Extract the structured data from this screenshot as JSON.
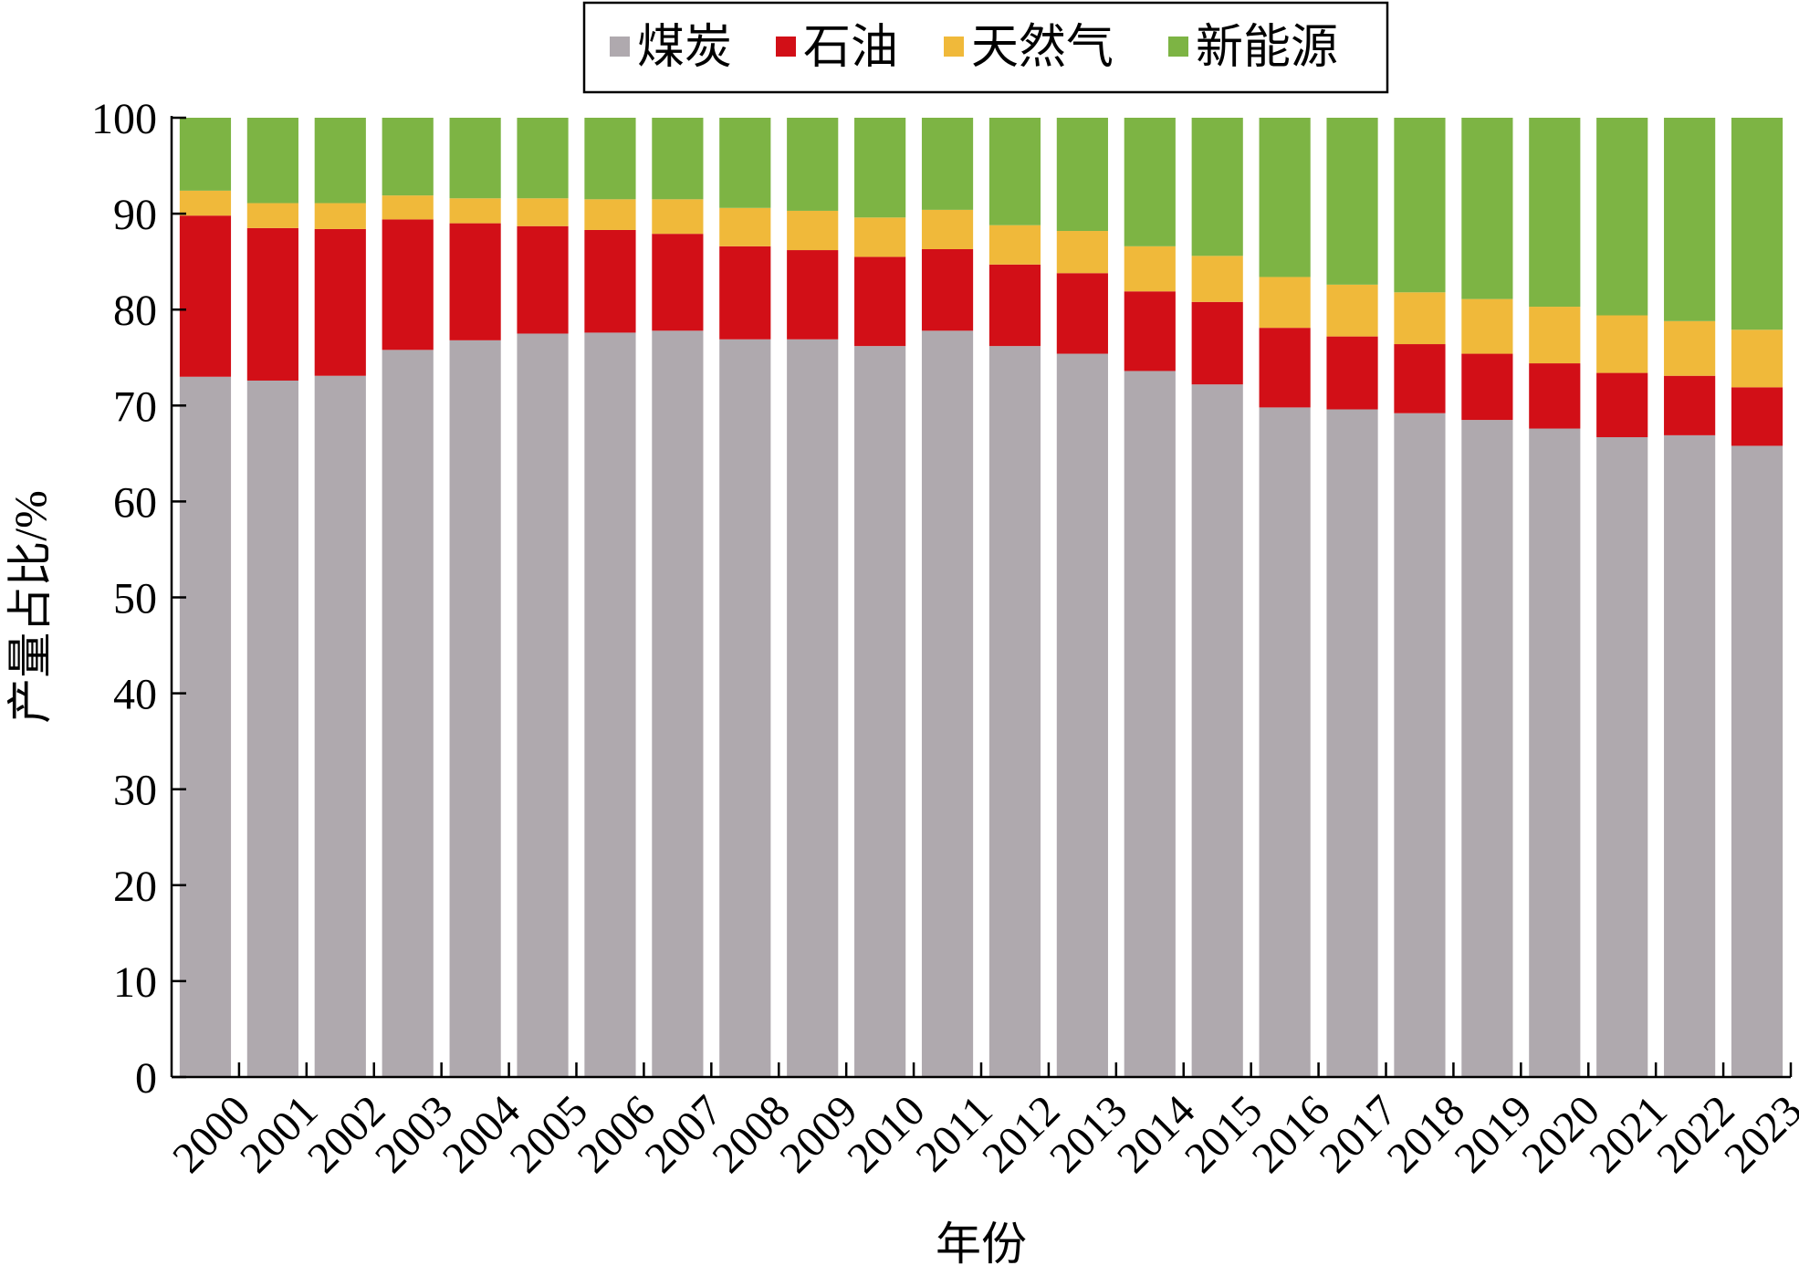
{
  "chart_data": {
    "type": "bar",
    "stacked": true,
    "title": "",
    "xlabel": "年份",
    "ylabel": "产量占比/%",
    "ylim": [
      0,
      100
    ],
    "yticks": [
      0,
      10,
      20,
      30,
      40,
      50,
      60,
      70,
      80,
      90,
      100
    ],
    "grid": false,
    "legend_position": "top-center",
    "categories": [
      "2000",
      "2001",
      "2002",
      "2003",
      "2004",
      "2005",
      "2006",
      "2007",
      "2008",
      "2009",
      "2010",
      "2011",
      "2012",
      "2013",
      "2014",
      "2015",
      "2016",
      "2017",
      "2018",
      "2019",
      "2020",
      "2021",
      "2022",
      "2023"
    ],
    "series": [
      {
        "name": "煤炭",
        "color": "#afa9ae",
        "values": [
          73.0,
          72.6,
          73.1,
          75.8,
          76.8,
          77.5,
          77.6,
          77.8,
          76.9,
          76.9,
          76.2,
          77.8,
          76.2,
          75.4,
          73.6,
          72.2,
          69.8,
          69.6,
          69.2,
          68.5,
          67.6,
          66.7,
          66.9,
          65.8
        ]
      },
      {
        "name": "石油",
        "color": "#d20f17",
        "values": [
          16.8,
          15.9,
          15.3,
          13.6,
          12.2,
          11.2,
          10.7,
          10.1,
          9.7,
          9.3,
          9.3,
          8.5,
          8.5,
          8.4,
          8.3,
          8.6,
          8.3,
          7.6,
          7.2,
          6.9,
          6.8,
          6.7,
          6.2,
          6.1
        ]
      },
      {
        "name": "天然气",
        "color": "#f0b93a",
        "values": [
          2.6,
          2.6,
          2.7,
          2.5,
          2.6,
          2.9,
          3.2,
          3.6,
          4.0,
          4.1,
          4.1,
          4.1,
          4.1,
          4.4,
          4.7,
          4.8,
          5.3,
          5.4,
          5.4,
          5.7,
          5.9,
          6.0,
          5.7,
          6.0
        ]
      },
      {
        "name": "新能源",
        "color": "#7db444",
        "values": [
          7.6,
          8.9,
          8.9,
          8.1,
          8.4,
          8.4,
          8.5,
          8.5,
          9.4,
          9.7,
          10.4,
          9.6,
          11.2,
          11.8,
          13.4,
          14.4,
          16.6,
          17.4,
          18.2,
          18.9,
          19.7,
          20.6,
          21.2,
          22.1
        ]
      }
    ]
  }
}
